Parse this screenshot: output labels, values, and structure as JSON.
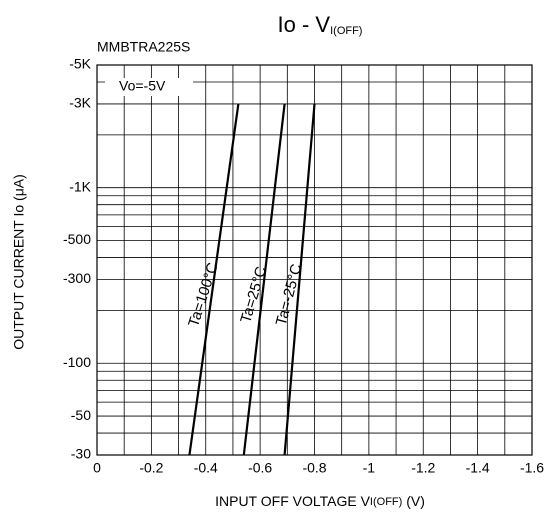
{
  "chart_data": {
    "type": "line",
    "title": "Io - V",
    "title_subscript": "I(OFF)",
    "subtitle": "MMBTRA225S",
    "annotation": "Vo=-5V",
    "xlabel": "INPUT OFF VOLTAGE V",
    "xlabel_subscript": "I(OFF)",
    "xlabel_unit": " (V)",
    "ylabel": "OUTPUT CURRENT Io (μA)",
    "xlim": [
      0,
      -1.6
    ],
    "xticks": [
      0,
      -0.2,
      -0.4,
      -0.6,
      -0.8,
      -1.0,
      -1.2,
      -1.4,
      -1.6
    ],
    "ylim": [
      -30,
      -5000
    ],
    "ylog": true,
    "yticks": [
      {
        "value": -5000,
        "label": "-5K"
      },
      {
        "value": -3000,
        "label": "-3K"
      },
      {
        "value": -1000,
        "label": "-1K"
      },
      -500,
      -300,
      -100,
      -50,
      -30
    ],
    "xgrid": [
      0,
      -0.1,
      -0.2,
      -0.3,
      -0.4,
      -0.5,
      -0.6,
      -0.7,
      -0.8,
      -0.9,
      -1.0,
      -1.1,
      -1.2,
      -1.3,
      -1.4,
      -1.5,
      -1.6
    ],
    "ygrid": [
      -30,
      -40,
      -50,
      -60,
      -70,
      -80,
      -90,
      -100,
      -200,
      -300,
      -400,
      -500,
      -600,
      -700,
      -800,
      -900,
      -1000,
      -2000,
      -3000,
      -4000,
      -5000
    ],
    "series": [
      {
        "name": "Ta=100°C",
        "color": "#000000",
        "x": [
          -0.34,
          -0.52
        ],
        "values": [
          -30,
          -3000
        ]
      },
      {
        "name": "Ta=25°C",
        "color": "#000000",
        "x": [
          -0.54,
          -0.69
        ],
        "values": [
          -30,
          -3000
        ]
      },
      {
        "name": "Ta=-25°C",
        "color": "#000000",
        "x": [
          -0.69,
          -0.8
        ],
        "values": [
          -30,
          -3000
        ]
      }
    ]
  }
}
